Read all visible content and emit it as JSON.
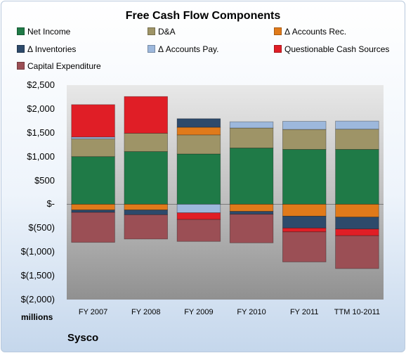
{
  "chart_data": {
    "type": "bar",
    "stacked": true,
    "title": "Free Cash Flow Components",
    "categories": [
      "FY 2007",
      "FY 2008",
      "FY 2009",
      "FY 2010",
      "FY 2011",
      "TTM 10-2011"
    ],
    "ylim": [
      -2000,
      2500
    ],
    "yticks": [
      2500,
      2000,
      1500,
      1000,
      500,
      0,
      -500,
      -1000,
      -1500,
      -2000
    ],
    "ytick_labels": [
      "$2,500",
      "$2,000",
      "$1,500",
      "$1,000",
      "$500",
      "$-",
      "$(500)",
      "$(1,000)",
      "$(1,500)",
      "$(2,000)"
    ],
    "units_label": "millions",
    "company": "Sysco",
    "grid": false,
    "legend_position": "top",
    "series": [
      {
        "name": "Net Income",
        "color": "#1f7a47",
        "values": [
          1000,
          1105,
          1055,
          1180,
          1150,
          1150
        ]
      },
      {
        "name": "D&A",
        "color": "#9e9467",
        "values": [
          370,
          385,
          400,
          420,
          420,
          425
        ]
      },
      {
        "name": "Δ Accounts Rec.",
        "color": "#e07a1a",
        "values": [
          -120,
          -120,
          160,
          -150,
          -250,
          -270
        ]
      },
      {
        "name": "Δ Inventories",
        "color": "#2d4a6b",
        "values": [
          -50,
          -100,
          180,
          -60,
          -250,
          -250
        ]
      },
      {
        "name": "Δ Accounts Pay.",
        "color": "#9db8dc",
        "values": [
          40,
          0,
          -180,
          130,
          170,
          170
        ]
      },
      {
        "name": "Questionable Cash Sources",
        "color": "#e01e26",
        "values": [
          680,
          770,
          -140,
          0,
          -80,
          -140
        ]
      },
      {
        "name": "Capital Expenditure",
        "color": "#9b4f55",
        "values": [
          -630,
          -510,
          -460,
          -600,
          -630,
          -690
        ]
      }
    ]
  }
}
